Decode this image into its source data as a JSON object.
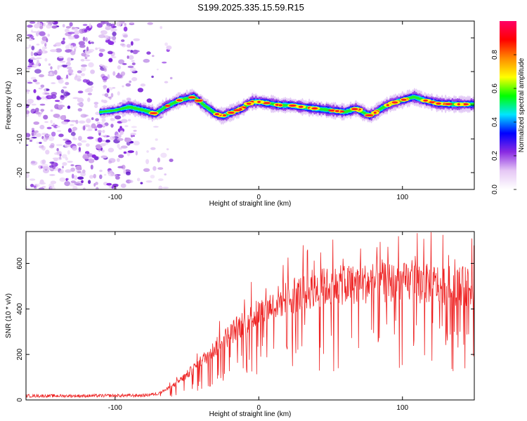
{
  "title": "S199.2025.335.15.59.R15",
  "chart_data": [
    {
      "type": "heatmap",
      "name": "spectrogram",
      "xlabel": "Height of straight line (km)",
      "ylabel": "Frequency (Hz)",
      "xlim": [
        -162,
        150
      ],
      "ylim": [
        -25,
        25
      ],
      "xticks": [
        -100,
        0,
        100
      ],
      "yticks": [
        -20,
        -10,
        0,
        10,
        20
      ],
      "colorbar": {
        "label": "Normalized spectral amplitude",
        "range": [
          0,
          1
        ],
        "ticks": [
          0.0,
          0.2,
          0.4,
          0.6,
          0.8
        ],
        "colors": [
          "#ffffff",
          "#e6c8f5",
          "#8a2be2",
          "#0000ff",
          "#00e5ff",
          "#00ff00",
          "#ffff00",
          "#ff8c00",
          "#ff0000",
          "#ff0066"
        ]
      },
      "ridge": {
        "x": [
          -110,
          -100,
          -90,
          -80,
          -72,
          -65,
          -55,
          -45,
          -38,
          -30,
          -25,
          -18,
          -12,
          -5,
          0,
          8,
          15,
          22,
          30,
          40,
          50,
          60,
          68,
          72,
          77,
          80,
          85,
          92,
          100,
          108,
          115,
          125,
          135,
          150
        ],
        "y": [
          -2,
          -1.5,
          -0.5,
          -1.5,
          -2.5,
          -0.5,
          1.5,
          2.5,
          0,
          -2.5,
          -3.2,
          -2,
          -1,
          1,
          1,
          0.5,
          0,
          0,
          -0.5,
          -1,
          -1.5,
          -2,
          -1,
          -2,
          -3,
          -2.5,
          -1,
          0.5,
          1.5,
          2.5,
          1.5,
          0.5,
          0.3,
          0.3
        ]
      },
      "noise_region_x": [
        -162,
        -70
      ]
    },
    {
      "type": "line",
      "name": "snr",
      "xlabel": "Height of straight line (km)",
      "ylabel": "SNR (10 * v/v)",
      "xlim": [
        -162,
        150
      ],
      "ylim": [
        0,
        740
      ],
      "xticks": [
        -100,
        0,
        100
      ],
      "yticks": [
        0,
        200,
        400,
        600
      ],
      "color": "#ee2222",
      "envelope_x": [
        -162,
        -120,
        -80,
        -70,
        -60,
        -50,
        -40,
        -30,
        -20,
        -10,
        0,
        10,
        20,
        30,
        40,
        50,
        60,
        70,
        80,
        90,
        100,
        110,
        120,
        130,
        140,
        150
      ],
      "envelope_y": [
        18,
        18,
        20,
        28,
        60,
        110,
        170,
        230,
        290,
        340,
        380,
        420,
        450,
        470,
        490,
        500,
        505,
        510,
        515,
        515,
        515,
        510,
        510,
        505,
        500,
        500
      ]
    }
  ]
}
